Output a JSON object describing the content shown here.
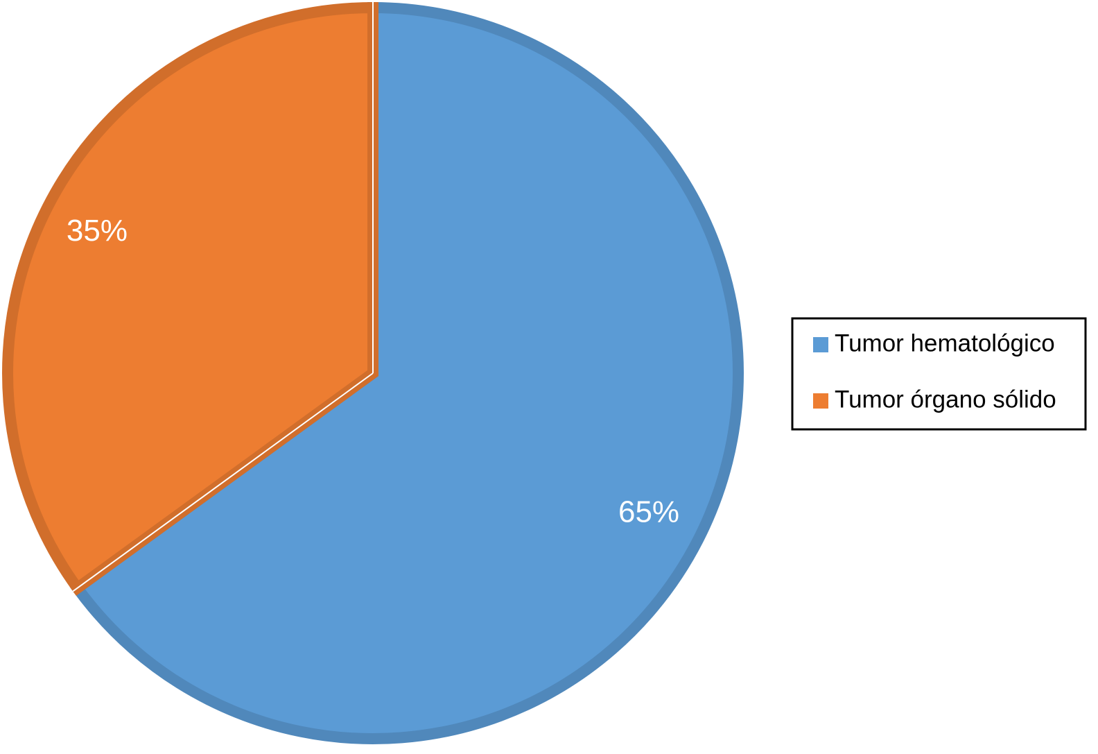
{
  "chart_data": {
    "type": "pie",
    "categories": [
      "Tumor hematológico",
      "Tumor órgano sólido"
    ],
    "values": [
      65,
      35
    ],
    "value_labels": [
      "65%",
      "35%"
    ],
    "colors": [
      "#5b9bd5",
      "#ed7d31"
    ],
    "legend": "right"
  }
}
